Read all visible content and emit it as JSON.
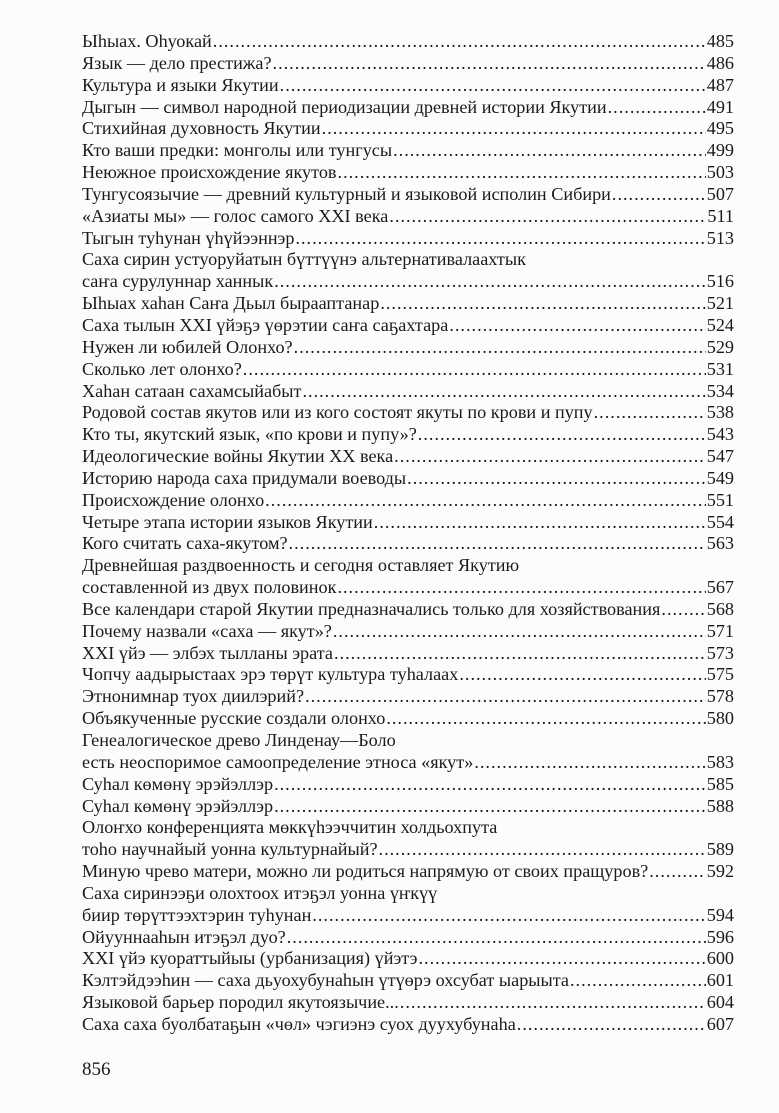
{
  "entries": [
    {
      "title": "Ыhыах. Оhуокай",
      "page": "485"
    },
    {
      "title": "Язык — дело престижа?",
      "page": "486"
    },
    {
      "title": "Культура и языки Якутии",
      "page": "487"
    },
    {
      "title": "Дыгын — символ народной периодизации древней истории Якутии",
      "page": "491"
    },
    {
      "title": "Стихийная духовность Якутии",
      "page": "495"
    },
    {
      "title": "Кто ваши предки: монголы или тунгусы",
      "page": "499"
    },
    {
      "title": "Неюжное происхождение якутов",
      "page": "503"
    },
    {
      "title": "Тунгусоязычие — древний культурный и языковой исполин Сибири",
      "page": "507"
    },
    {
      "title": "«Азиаты мы» — голос самого XXI века",
      "page": "511"
    },
    {
      "title": "Тыгын туhунан үhүйээннэр",
      "page": "513"
    },
    {
      "title": "Саха сирин устуоруйатын бүттүүнэ альтернативалаахтык",
      "page": ""
    },
    {
      "title": "саҥа сурулуннар ханнык",
      "page": "516"
    },
    {
      "title": "Ыhыах хаhан Саҥа Дьыл быраап­танар",
      "page": "521"
    },
    {
      "title": "Саха тылын XXI үйэҕэ үөрэтии саҥа саҕахтара",
      "page": "524"
    },
    {
      "title": "Нужен ли юбилей Олонхо?",
      "page": "529"
    },
    {
      "title": "Сколько лет олонхо?",
      "page": "531"
    },
    {
      "title": "Хаhан сатаан сахамсыйабыт",
      "page": "534"
    },
    {
      "title": "Родовой состав якутов или из кого состоят якуты по крови и пупу",
      "page": "538"
    },
    {
      "title": "Кто ты, якутский язык, «по крови и пупу»?",
      "page": "543"
    },
    {
      "title": "Идеологические войны Якутии XX века",
      "page": "547"
    },
    {
      "title": "Историю народа саха придумали воеводы",
      "page": "549"
    },
    {
      "title": "Происхождение олонхо",
      "page": "551"
    },
    {
      "title": "Четыре этапа истории языков Якутии",
      "page": "554"
    },
    {
      "title": "Кого считать саха-якутом?",
      "page": "563"
    },
    {
      "title": "Древнейшая раздвоенность и сегодня оставляет Якутию",
      "page": ""
    },
    {
      "title": "составленной из двух половинок",
      "page": "567"
    },
    {
      "title": "Все календари старой Якутии предназначались только для хозяйствования",
      "page": "568"
    },
    {
      "title": "Почему назвали «саха — якут»?",
      "page": "571"
    },
    {
      "title": "XXI үйэ — элбэх тылланы эрата",
      "page": "573"
    },
    {
      "title": "Чопчу аадырыстаах эрэ төрүт культура туhалаах",
      "page": "575"
    },
    {
      "title": "Этнонимнар туох диилэрий?",
      "page": "578"
    },
    {
      "title": "Объякученные русские создали олонхо",
      "page": "580"
    },
    {
      "title": "Генеалогическое древо Линденау—Боло",
      "page": ""
    },
    {
      "title": "есть неоспоримое самоопределение этноса «якут»",
      "page": "583"
    },
    {
      "title": "Суhал көмөнү эрэйэллэр",
      "page": "585"
    },
    {
      "title": "Суhал көмөнү эрэйэллэр",
      "page": "588"
    },
    {
      "title": "Олоҥхо конференциятa мөккүhээччитин холдьохпута",
      "page": ""
    },
    {
      "title": "тоhо научнайый уонна культурнайый?",
      "page": "589"
    },
    {
      "title": "Миную чрево матери, можно ли родиться напрямую от своих пращуров?",
      "page": "592"
    },
    {
      "title": "Саха сиринээҕи олохтоох итэҕэл уонна үҥкүү",
      "page": ""
    },
    {
      "title": "биир төрүттээхтэрин туhунан",
      "page": "594"
    },
    {
      "title": "Ойууннааhын итэҕэл дуо?",
      "page": "596"
    },
    {
      "title": "XXI үйэ куораттыйыы (урбанизация) үйэтэ",
      "page": "600"
    },
    {
      "title": "Кэлтэйдээhин — саха дьуохубунаhын үтүөрэ охсубат ыарыыта",
      "page": "601"
    },
    {
      "title": "Языковой барьер породил якутоязычие...",
      "page": "604"
    },
    {
      "title": "Саха саха буолбатаҕын «чөл» чэгиэнэ суох дуухубунаhа",
      "page": "607"
    }
  ],
  "folio": "856"
}
